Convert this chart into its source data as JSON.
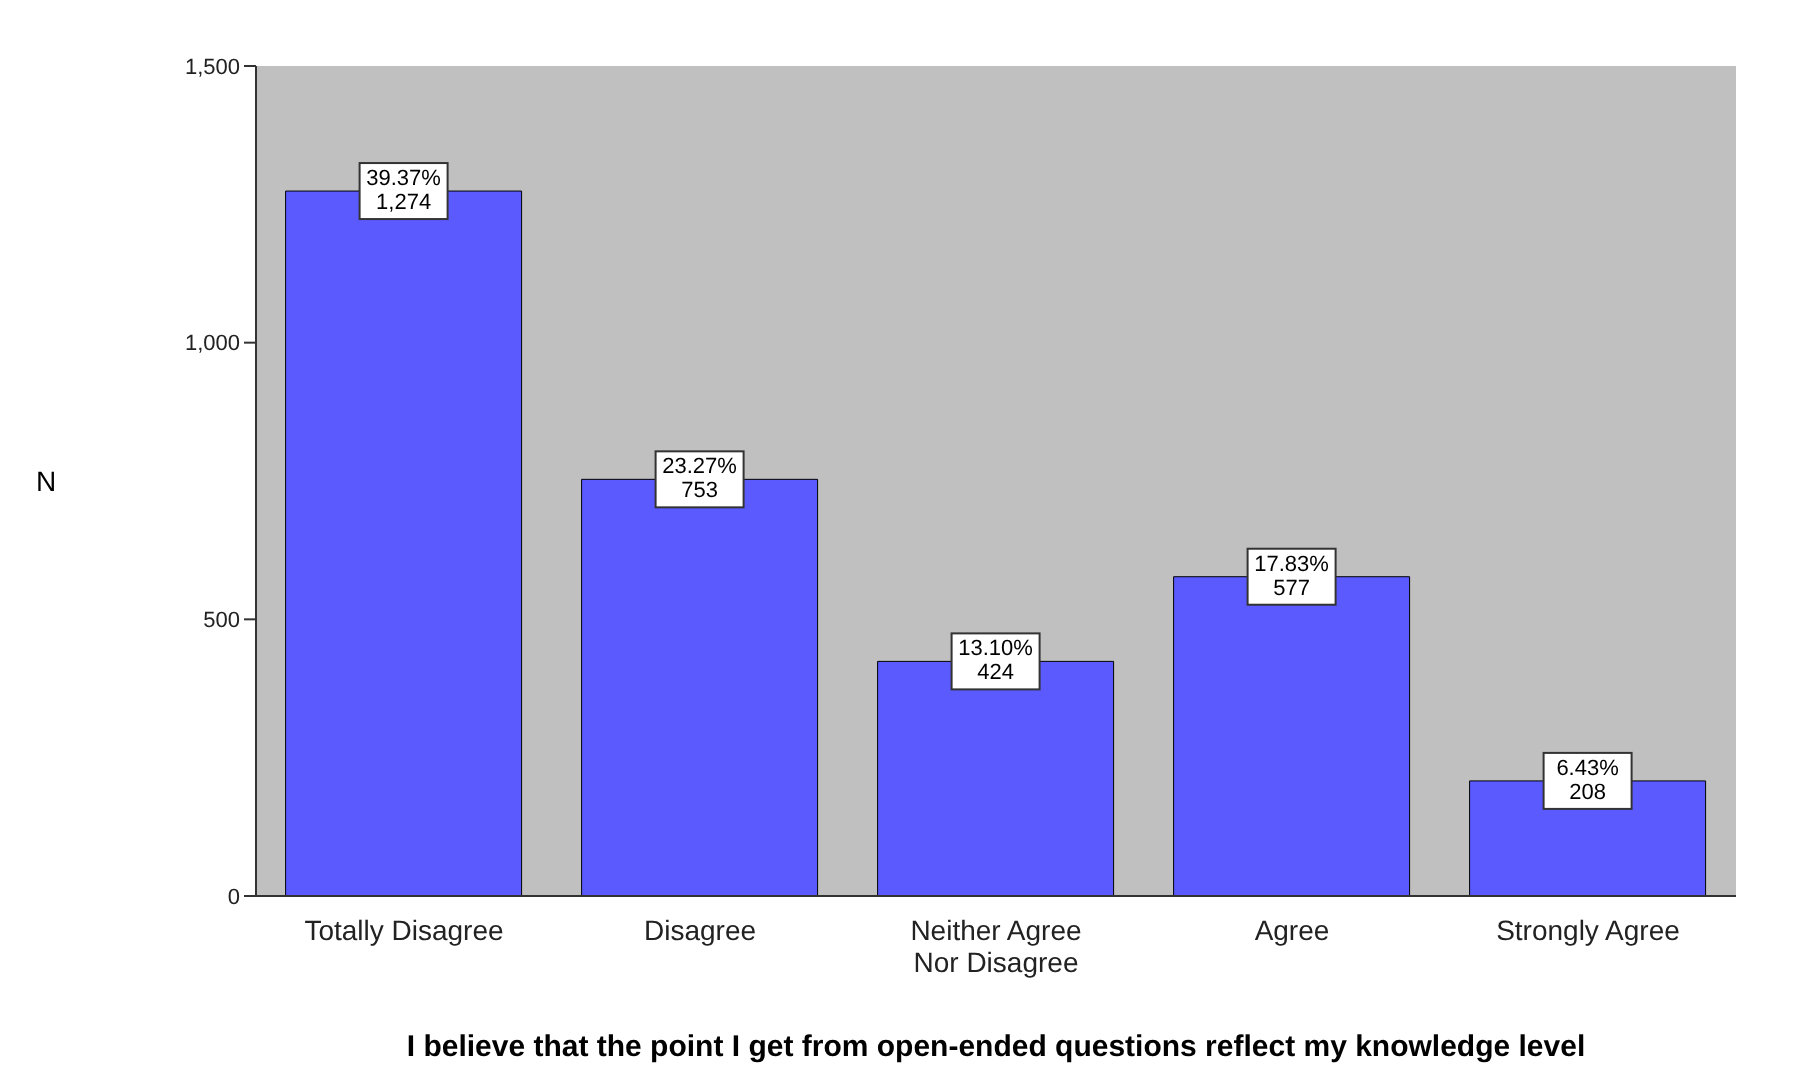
{
  "chart_data": {
    "type": "bar",
    "xlabel": "I believe that the point I get from open-ended questions reflect my knowledge level",
    "ylabel": "N",
    "categories": [
      "Totally Disagree",
      "Disagree",
      "Neither Agree Nor Disagree",
      "Agree",
      "Strongly Agree"
    ],
    "values": [
      1274,
      753,
      424,
      577,
      208
    ],
    "value_labels": [
      "39.37%\n1,274",
      "23.27%\n753",
      "13.10%\n424",
      "17.83%\n577",
      "6.43%\n208"
    ],
    "color": "#5a5aff",
    "ylim": [
      0,
      1500
    ],
    "yticks": [
      0,
      500,
      {
        "value": 1000,
        "label": "1,000"
      },
      {
        "value": 1500,
        "label": "1,500"
      }
    ]
  }
}
